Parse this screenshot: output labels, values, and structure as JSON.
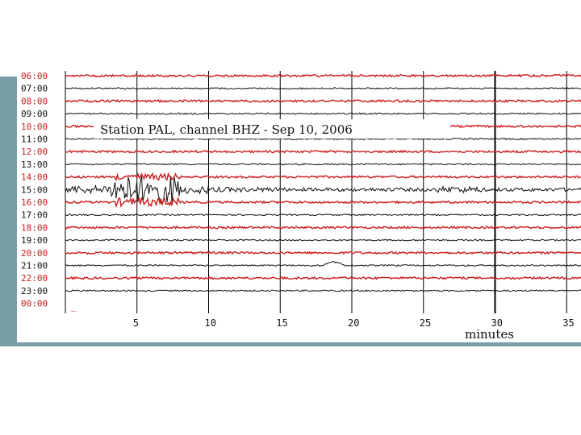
{
  "chart_data": {
    "type": "line",
    "title": "Station PAL, channel BHZ  -  Sep 10, 2006",
    "station": "PAL",
    "channel": "BHZ",
    "date": "Sep 10, 2006",
    "xlabel": "minutes",
    "xlim": [
      0,
      36
    ],
    "xticks": [
      5,
      10,
      15,
      20,
      25,
      30,
      35
    ],
    "grid": true,
    "row_labels": [
      "06:00",
      "07:00",
      "08:00",
      "09:00",
      "10:00",
      "11:00",
      "12:00",
      "13:00",
      "14:00",
      "15:00",
      "16:00",
      "17:00",
      "18:00",
      "19:00",
      "20:00",
      "21:00",
      "22:00",
      "23:00",
      "00:00"
    ],
    "colors": {
      "red_trace": "#cc1b1b",
      "black_trace": "#111111",
      "frame": "#7a9ea6",
      "grid": "#000000"
    },
    "events": [
      {
        "row": "15:00",
        "start_minute": 0,
        "strong_until_minute": 8,
        "coda_until_minute": 36,
        "description_shown": false
      },
      {
        "row": "21:00",
        "start_minute": 18,
        "end_minute": 19.5,
        "description_shown": false
      }
    ]
  }
}
